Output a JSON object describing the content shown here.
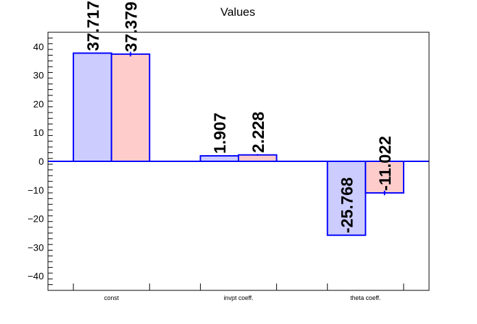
{
  "chart_data": {
    "type": "bar",
    "title": "Values",
    "categories": [
      "const",
      "invpt coeff.",
      "theta coeff."
    ],
    "series": [
      {
        "values": [
          37.717,
          1.907,
          -25.768
        ],
        "color": "#ccccff",
        "edge": "#0000ff",
        "labels": [
          "37.717",
          "1.907",
          "-25.768"
        ]
      },
      {
        "values": [
          37.379,
          2.228,
          -11.022
        ],
        "errors": [
          0.8,
          0.3,
          0.8
        ],
        "color": "#ffcccc",
        "edge": "#0000ff",
        "labels": [
          "37.379",
          "2.228",
          "-11.022"
        ]
      }
    ],
    "ylim": [
      -45,
      45
    ],
    "yticks": [
      -40,
      -30,
      -20,
      -10,
      0,
      10,
      20,
      30,
      40
    ],
    "ytick_labels": [
      "−40",
      "−30",
      "−20",
      "−10",
      "0",
      "10",
      "20",
      "30",
      "40"
    ],
    "grid": false,
    "legend": "none",
    "xlabel": "",
    "ylabel": ""
  }
}
